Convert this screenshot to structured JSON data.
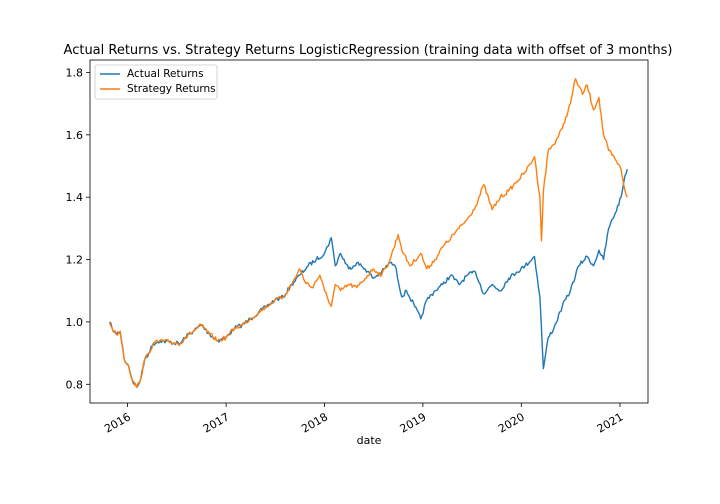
{
  "chart_data": {
    "type": "line",
    "title": "Actual Returns vs. Strategy Returns LogisticRegression (training data with offset of 3 months)",
    "xlabel": "date",
    "ylabel": "",
    "legend_position": "top-left",
    "grid": false,
    "x_ticks": [
      "2016",
      "2017",
      "2018",
      "2019",
      "2020",
      "2021"
    ],
    "y_ticks": [
      0.8,
      1.0,
      1.2,
      1.4,
      1.6,
      1.8
    ],
    "xlim": [
      "2015-08-15",
      "2021-04-15"
    ],
    "ylim": [
      0.74,
      1.84
    ],
    "colors": {
      "actual": "#1f77b4",
      "strategy": "#ff7f0e"
    },
    "series": [
      {
        "name": "Actual Returns",
        "color": "#1f77b4",
        "points": [
          [
            "2015-10-26",
            1.0
          ],
          [
            "2015-11-05",
            0.98
          ],
          [
            "2015-11-20",
            0.96
          ],
          [
            "2015-12-05",
            0.97
          ],
          [
            "2015-12-20",
            0.88
          ],
          [
            "2016-01-05",
            0.86
          ],
          [
            "2016-01-20",
            0.81
          ],
          [
            "2016-02-05",
            0.79
          ],
          [
            "2016-02-20",
            0.82
          ],
          [
            "2016-03-05",
            0.88
          ],
          [
            "2016-03-20",
            0.9
          ],
          [
            "2016-04-05",
            0.93
          ],
          [
            "2016-05-01",
            0.94
          ],
          [
            "2016-07-15",
            0.93
          ],
          [
            "2016-08-01",
            0.95
          ],
          [
            "2016-09-01",
            0.97
          ],
          [
            "2016-10-01",
            0.99
          ],
          [
            "2016-11-01",
            0.96
          ],
          [
            "2016-12-01",
            0.94
          ],
          [
            "2017-01-01",
            0.95
          ],
          [
            "2017-02-01",
            0.98
          ],
          [
            "2017-03-01",
            0.99
          ],
          [
            "2017-04-01",
            1.01
          ],
          [
            "2017-05-01",
            1.03
          ],
          [
            "2017-06-01",
            1.05
          ],
          [
            "2017-07-01",
            1.07
          ],
          [
            "2017-08-01",
            1.08
          ],
          [
            "2017-09-01",
            1.12
          ],
          [
            "2017-10-01",
            1.15
          ],
          [
            "2017-11-01",
            1.18
          ],
          [
            "2017-12-01",
            1.2
          ],
          [
            "2018-01-01",
            1.22
          ],
          [
            "2018-01-26",
            1.27
          ],
          [
            "2018-02-10",
            1.18
          ],
          [
            "2018-03-01",
            1.22
          ],
          [
            "2018-04-01",
            1.17
          ],
          [
            "2018-05-01",
            1.19
          ],
          [
            "2018-06-01",
            1.17
          ],
          [
            "2018-07-01",
            1.14
          ],
          [
            "2018-08-01",
            1.16
          ],
          [
            "2018-09-01",
            1.19
          ],
          [
            "2018-09-20",
            1.18
          ],
          [
            "2018-10-15",
            1.08
          ],
          [
            "2018-11-01",
            1.1
          ],
          [
            "2018-12-01",
            1.05
          ],
          [
            "2018-12-24",
            1.01
          ],
          [
            "2019-01-15",
            1.07
          ],
          [
            "2019-02-15",
            1.1
          ],
          [
            "2019-03-15",
            1.12
          ],
          [
            "2019-04-15",
            1.15
          ],
          [
            "2019-05-15",
            1.12
          ],
          [
            "2019-06-15",
            1.15
          ],
          [
            "2019-07-15",
            1.16
          ],
          [
            "2019-08-15",
            1.09
          ],
          [
            "2019-09-15",
            1.12
          ],
          [
            "2019-10-15",
            1.1
          ],
          [
            "2019-11-15",
            1.14
          ],
          [
            "2019-12-15",
            1.16
          ],
          [
            "2020-01-15",
            1.18
          ],
          [
            "2020-02-19",
            1.21
          ],
          [
            "2020-03-10",
            1.08
          ],
          [
            "2020-03-23",
            0.85
          ],
          [
            "2020-04-10",
            0.95
          ],
          [
            "2020-05-01",
            0.98
          ],
          [
            "2020-06-01",
            1.05
          ],
          [
            "2020-07-01",
            1.1
          ],
          [
            "2020-08-01",
            1.18
          ],
          [
            "2020-09-01",
            1.21
          ],
          [
            "2020-09-25",
            1.18
          ],
          [
            "2020-10-15",
            1.23
          ],
          [
            "2020-11-01",
            1.2
          ],
          [
            "2020-11-20",
            1.3
          ],
          [
            "2020-12-15",
            1.35
          ],
          [
            "2021-01-05",
            1.4
          ],
          [
            "2021-01-20",
            1.47
          ],
          [
            "2021-01-28",
            1.49
          ]
        ]
      },
      {
        "name": "Strategy Returns",
        "color": "#ff7f0e",
        "points": [
          [
            "2015-10-26",
            1.0
          ],
          [
            "2015-11-05",
            0.98
          ],
          [
            "2015-11-20",
            0.96
          ],
          [
            "2015-12-05",
            0.97
          ],
          [
            "2015-12-20",
            0.88
          ],
          [
            "2016-01-05",
            0.86
          ],
          [
            "2016-01-20",
            0.81
          ],
          [
            "2016-02-05",
            0.79
          ],
          [
            "2016-02-20",
            0.82
          ],
          [
            "2016-03-05",
            0.88
          ],
          [
            "2016-03-20",
            0.9
          ],
          [
            "2016-04-05",
            0.93
          ],
          [
            "2016-05-01",
            0.94
          ],
          [
            "2016-07-15",
            0.93
          ],
          [
            "2016-08-01",
            0.95
          ],
          [
            "2016-09-01",
            0.97
          ],
          [
            "2016-10-01",
            0.99
          ],
          [
            "2016-11-01",
            0.96
          ],
          [
            "2016-12-01",
            0.94
          ],
          [
            "2017-01-01",
            0.95
          ],
          [
            "2017-02-01",
            0.98
          ],
          [
            "2017-03-01",
            0.99
          ],
          [
            "2017-04-01",
            1.01
          ],
          [
            "2017-05-01",
            1.03
          ],
          [
            "2017-06-01",
            1.05
          ],
          [
            "2017-07-01",
            1.07
          ],
          [
            "2017-08-01",
            1.08
          ],
          [
            "2017-09-01",
            1.12
          ],
          [
            "2017-10-01",
            1.17
          ],
          [
            "2017-10-20",
            1.13
          ],
          [
            "2017-11-15",
            1.11
          ],
          [
            "2017-12-15",
            1.15
          ],
          [
            "2018-01-01",
            1.1
          ],
          [
            "2018-01-26",
            1.05
          ],
          [
            "2018-02-10",
            1.12
          ],
          [
            "2018-03-01",
            1.1
          ],
          [
            "2018-04-01",
            1.12
          ],
          [
            "2018-05-01",
            1.11
          ],
          [
            "2018-06-01",
            1.14
          ],
          [
            "2018-07-01",
            1.17
          ],
          [
            "2018-08-01",
            1.15
          ],
          [
            "2018-09-01",
            1.2
          ],
          [
            "2018-10-01",
            1.28
          ],
          [
            "2018-10-20",
            1.22
          ],
          [
            "2018-11-15",
            1.18
          ],
          [
            "2018-12-24",
            1.22
          ],
          [
            "2019-01-15",
            1.17
          ],
          [
            "2019-02-15",
            1.2
          ],
          [
            "2019-03-15",
            1.24
          ],
          [
            "2019-04-15",
            1.27
          ],
          [
            "2019-05-15",
            1.3
          ],
          [
            "2019-06-15",
            1.33
          ],
          [
            "2019-07-15",
            1.37
          ],
          [
            "2019-08-15",
            1.44
          ],
          [
            "2019-09-15",
            1.36
          ],
          [
            "2019-10-15",
            1.4
          ],
          [
            "2019-11-15",
            1.42
          ],
          [
            "2019-12-15",
            1.45
          ],
          [
            "2020-01-15",
            1.48
          ],
          [
            "2020-02-19",
            1.53
          ],
          [
            "2020-03-10",
            1.4
          ],
          [
            "2020-03-16",
            1.26
          ],
          [
            "2020-03-23",
            1.42
          ],
          [
            "2020-04-10",
            1.55
          ],
          [
            "2020-05-01",
            1.57
          ],
          [
            "2020-06-01",
            1.62
          ],
          [
            "2020-07-01",
            1.7
          ],
          [
            "2020-07-20",
            1.78
          ],
          [
            "2020-08-15",
            1.73
          ],
          [
            "2020-09-01",
            1.76
          ],
          [
            "2020-09-25",
            1.68
          ],
          [
            "2020-10-15",
            1.72
          ],
          [
            "2020-11-01",
            1.6
          ],
          [
            "2020-11-20",
            1.55
          ],
          [
            "2020-12-15",
            1.52
          ],
          [
            "2021-01-05",
            1.49
          ],
          [
            "2021-01-20",
            1.42
          ],
          [
            "2021-01-28",
            1.4
          ]
        ]
      }
    ]
  }
}
